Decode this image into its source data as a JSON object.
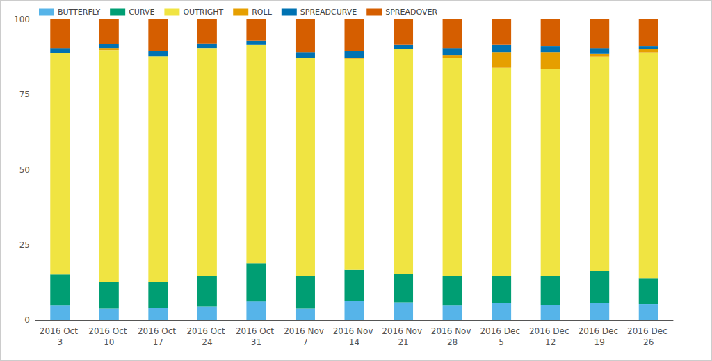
{
  "chart_data": {
    "type": "bar",
    "stacked": true,
    "grid": false,
    "legend": "top-left",
    "categories": [
      "2016 Oct 3",
      "2016 Oct 10",
      "2016 Oct 17",
      "2016 Oct 24",
      "2016 Oct 31",
      "2016 Nov 7",
      "2016 Nov 14",
      "2016 Nov 21",
      "2016 Nov 28",
      "2016 Dec 5",
      "2016 Dec 12",
      "2016 Dec 19",
      "2016 Dec 26"
    ],
    "ylim": [
      0,
      100
    ],
    "yticks": [
      0,
      25,
      50,
      75,
      100
    ],
    "series": [
      {
        "name": "BUTTERFLY",
        "color": "#56b4e9",
        "values": [
          4.8,
          3.8,
          4.0,
          4.5,
          6.2,
          3.8,
          6.4,
          5.9,
          4.8,
          5.6,
          5.1,
          5.8,
          5.3
        ]
      },
      {
        "name": "CURVE",
        "color": "#009e73",
        "values": [
          10.4,
          8.9,
          8.7,
          10.3,
          12.7,
          10.8,
          10.3,
          9.5,
          10.0,
          9.0,
          9.5,
          10.6,
          8.5
        ]
      },
      {
        "name": "OUTRIGHT",
        "color": "#f0e442",
        "values": [
          73.5,
          77.1,
          75.0,
          75.7,
          72.6,
          72.7,
          70.2,
          74.7,
          72.3,
          69.3,
          69.0,
          71.2,
          75.2
        ]
      },
      {
        "name": "ROLL",
        "color": "#e69f00",
        "values": [
          0,
          0.7,
          0,
          0,
          0,
          0,
          0.3,
          0.2,
          1.1,
          5.2,
          5.5,
          0.9,
          1.3
        ]
      },
      {
        "name": "SPREADCURVE",
        "color": "#0072b2",
        "values": [
          1.8,
          1.2,
          1.9,
          1.5,
          1.4,
          1.8,
          2.2,
          1.2,
          2.3,
          2.4,
          2.1,
          2.0,
          0.9
        ]
      },
      {
        "name": "SPREADOVER",
        "color": "#d55e00",
        "values": [
          9.5,
          8.3,
          10.4,
          8.0,
          7.1,
          10.9,
          10.6,
          8.5,
          9.5,
          8.5,
          8.8,
          9.5,
          8.8
        ]
      }
    ]
  }
}
